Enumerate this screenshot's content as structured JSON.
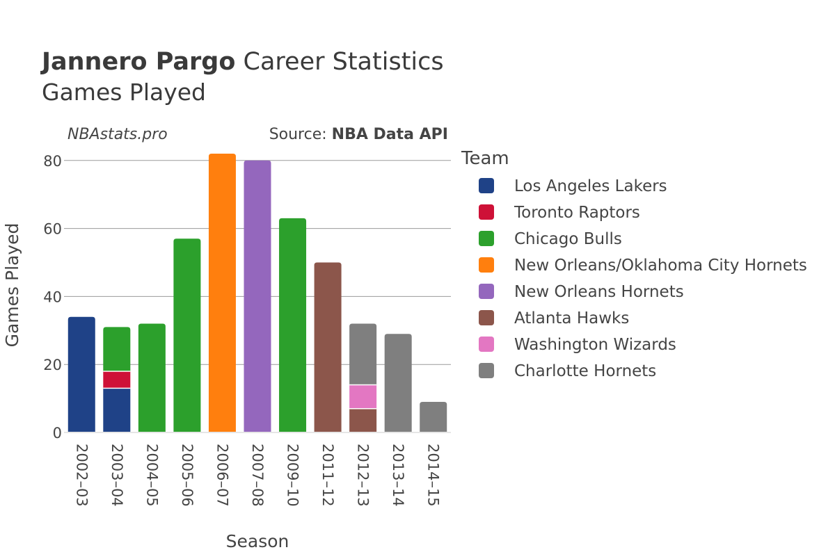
{
  "header": {
    "player_name": "Jannero Pargo",
    "title_rest": " Career Statistics",
    "subtitle": "Games Played",
    "site": "NBAstats.pro",
    "source_prefix": "Source: ",
    "source_name": "NBA Data API"
  },
  "chart_data": {
    "type": "bar",
    "stacked": true,
    "xlabel": "Season",
    "ylabel": "Games Played",
    "ylim": [
      0,
      85
    ],
    "yticks": [
      0,
      20,
      40,
      60,
      80
    ],
    "grid": true,
    "legend_position": "right",
    "legend_title": "Team",
    "categories": [
      "2002–03",
      "2003–04",
      "2004–05",
      "2005–06",
      "2006–07",
      "2007–08",
      "2009–10",
      "2011–12",
      "2012–13",
      "2013–14",
      "2014–15"
    ],
    "series": [
      {
        "name": "Los Angeles Lakers",
        "color": "#1f4287",
        "values": [
          34,
          13,
          0,
          0,
          0,
          0,
          0,
          0,
          0,
          0,
          0
        ]
      },
      {
        "name": "Toronto Raptors",
        "color": "#ce1137",
        "values": [
          0,
          5,
          0,
          0,
          0,
          0,
          0,
          0,
          0,
          0,
          0
        ]
      },
      {
        "name": "Chicago Bulls",
        "color": "#2ca02c",
        "values": [
          0,
          13,
          32,
          57,
          0,
          0,
          63,
          0,
          0,
          0,
          0
        ]
      },
      {
        "name": "New Orleans/Oklahoma City Hornets",
        "color": "#ff7f0e",
        "values": [
          0,
          0,
          0,
          0,
          82,
          0,
          0,
          0,
          0,
          0,
          0
        ]
      },
      {
        "name": "New Orleans Hornets",
        "color": "#9467bd",
        "values": [
          0,
          0,
          0,
          0,
          0,
          80,
          0,
          0,
          0,
          0,
          0
        ]
      },
      {
        "name": "Atlanta Hawks",
        "color": "#8c564b",
        "values": [
          0,
          0,
          0,
          0,
          0,
          0,
          0,
          50,
          7,
          0,
          0
        ]
      },
      {
        "name": "Washington Wizards",
        "color": "#e377c2",
        "values": [
          0,
          0,
          0,
          0,
          0,
          0,
          0,
          0,
          7,
          0,
          0
        ]
      },
      {
        "name": "Charlotte Hornets",
        "color": "#7f7f7f",
        "values": [
          0,
          0,
          0,
          0,
          0,
          0,
          0,
          0,
          18,
          29,
          9
        ]
      }
    ]
  }
}
